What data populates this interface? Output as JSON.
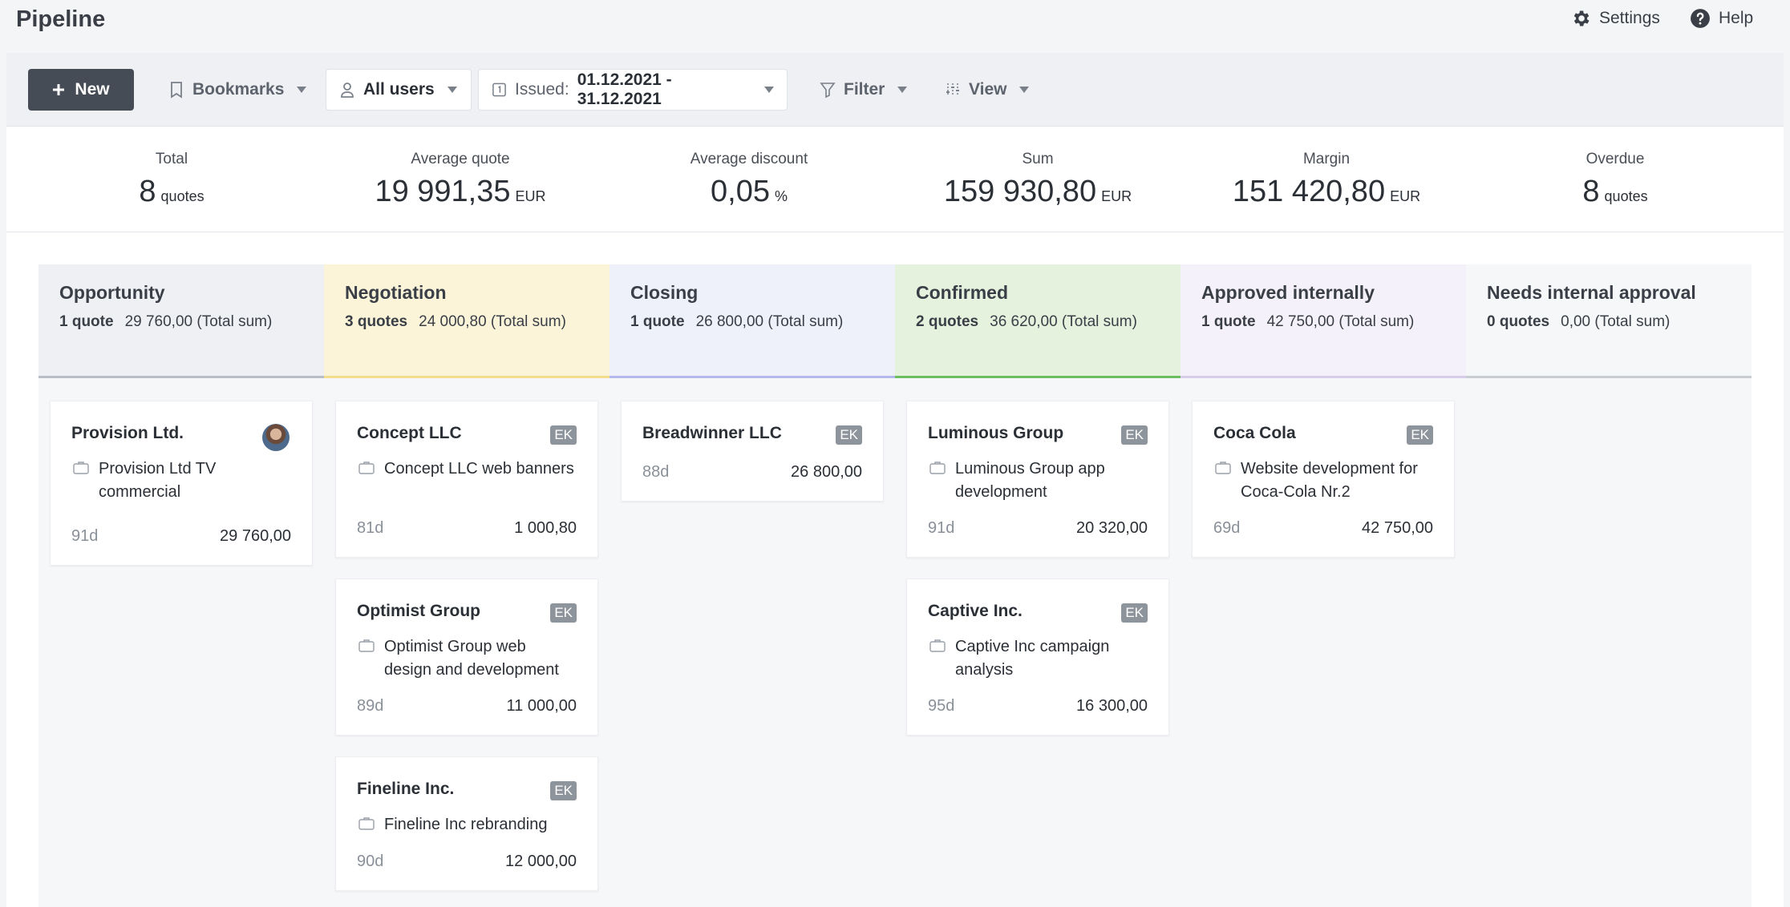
{
  "header": {
    "title": "Pipeline",
    "settings_label": "Settings",
    "help_label": "Help"
  },
  "toolbar": {
    "new_label": "New",
    "bookmarks_label": "Bookmarks",
    "users_label": "All users",
    "issued_prefix": "Issued:",
    "issued_range": "01.12.2021 - 31.12.2021",
    "filter_label": "Filter",
    "view_label": "View"
  },
  "stats": [
    {
      "label": "Total",
      "value": "8",
      "unit": "quotes"
    },
    {
      "label": "Average quote",
      "value": "19 991,35",
      "unit": "EUR"
    },
    {
      "label": "Average discount",
      "value": "0,05",
      "unit": "%"
    },
    {
      "label": "Sum",
      "value": "159 930,80",
      "unit": "EUR"
    },
    {
      "label": "Margin",
      "value": "151 420,80",
      "unit": "EUR"
    },
    {
      "label": "Overdue",
      "value": "8",
      "unit": "quotes"
    }
  ],
  "columns": [
    {
      "name": "Opportunity",
      "count": "1 quote",
      "sum": "29 760,00 (Total sum)",
      "bg": "#eef0f3",
      "bar": "#b9bec6"
    },
    {
      "name": "Negotiation",
      "count": "3 quotes",
      "sum": "24 000,80 (Total sum)",
      "bg": "#fcf4d9",
      "bar": "#f3dc8a"
    },
    {
      "name": "Closing",
      "count": "1 quote",
      "sum": "26 800,00 (Total sum)",
      "bg": "#eef1fa",
      "bar": "#b3b9ea"
    },
    {
      "name": "Confirmed",
      "count": "2 quotes",
      "sum": "36 620,00 (Total sum)",
      "bg": "#e5f2de",
      "bar": "#6bbf5e"
    },
    {
      "name": "Approved internally",
      "count": "1 quote",
      "sum": "42 750,00 (Total sum)",
      "bg": "#f5f1fb",
      "bar": "#d7cde8"
    },
    {
      "name": "Needs internal approval",
      "count": "0 quotes",
      "sum": "0,00 (Total sum)",
      "bg": "#f6f7f9",
      "bar": "#c9ccd2"
    }
  ],
  "cards": [
    {
      "title": "Provision Ltd.",
      "owner": "avatar",
      "desc": "Provision Ltd TV commercial",
      "days": "91d",
      "amount": "29 760,00"
    },
    {
      "title": "Concept LLC",
      "owner": "EK",
      "desc": "Concept LLC web banners",
      "days": "81d",
      "amount": "1 000,80"
    },
    {
      "title": "Optimist Group",
      "owner": "EK",
      "desc": "Optimist Group web design and development",
      "days": "89d",
      "amount": "11 000,00"
    },
    {
      "title": "Fineline Inc.",
      "owner": "EK",
      "desc": "Fineline Inc rebranding",
      "days": "90d",
      "amount": "12 000,00"
    },
    {
      "title": "Breadwinner LLC",
      "owner": "EK",
      "desc": "",
      "days": "88d",
      "amount": "26 800,00"
    },
    {
      "title": "Luminous Group",
      "owner": "EK",
      "desc": "Luminous Group app development",
      "days": "91d",
      "amount": "20 320,00"
    },
    {
      "title": "Captive Inc.",
      "owner": "EK",
      "desc": "Captive Inc campaign analysis",
      "days": "95d",
      "amount": "16 300,00"
    },
    {
      "title": "Coca Cola",
      "owner": "EK",
      "desc": "Website development for Coca-Cola Nr.2",
      "days": "69d",
      "amount": "42 750,00"
    }
  ]
}
